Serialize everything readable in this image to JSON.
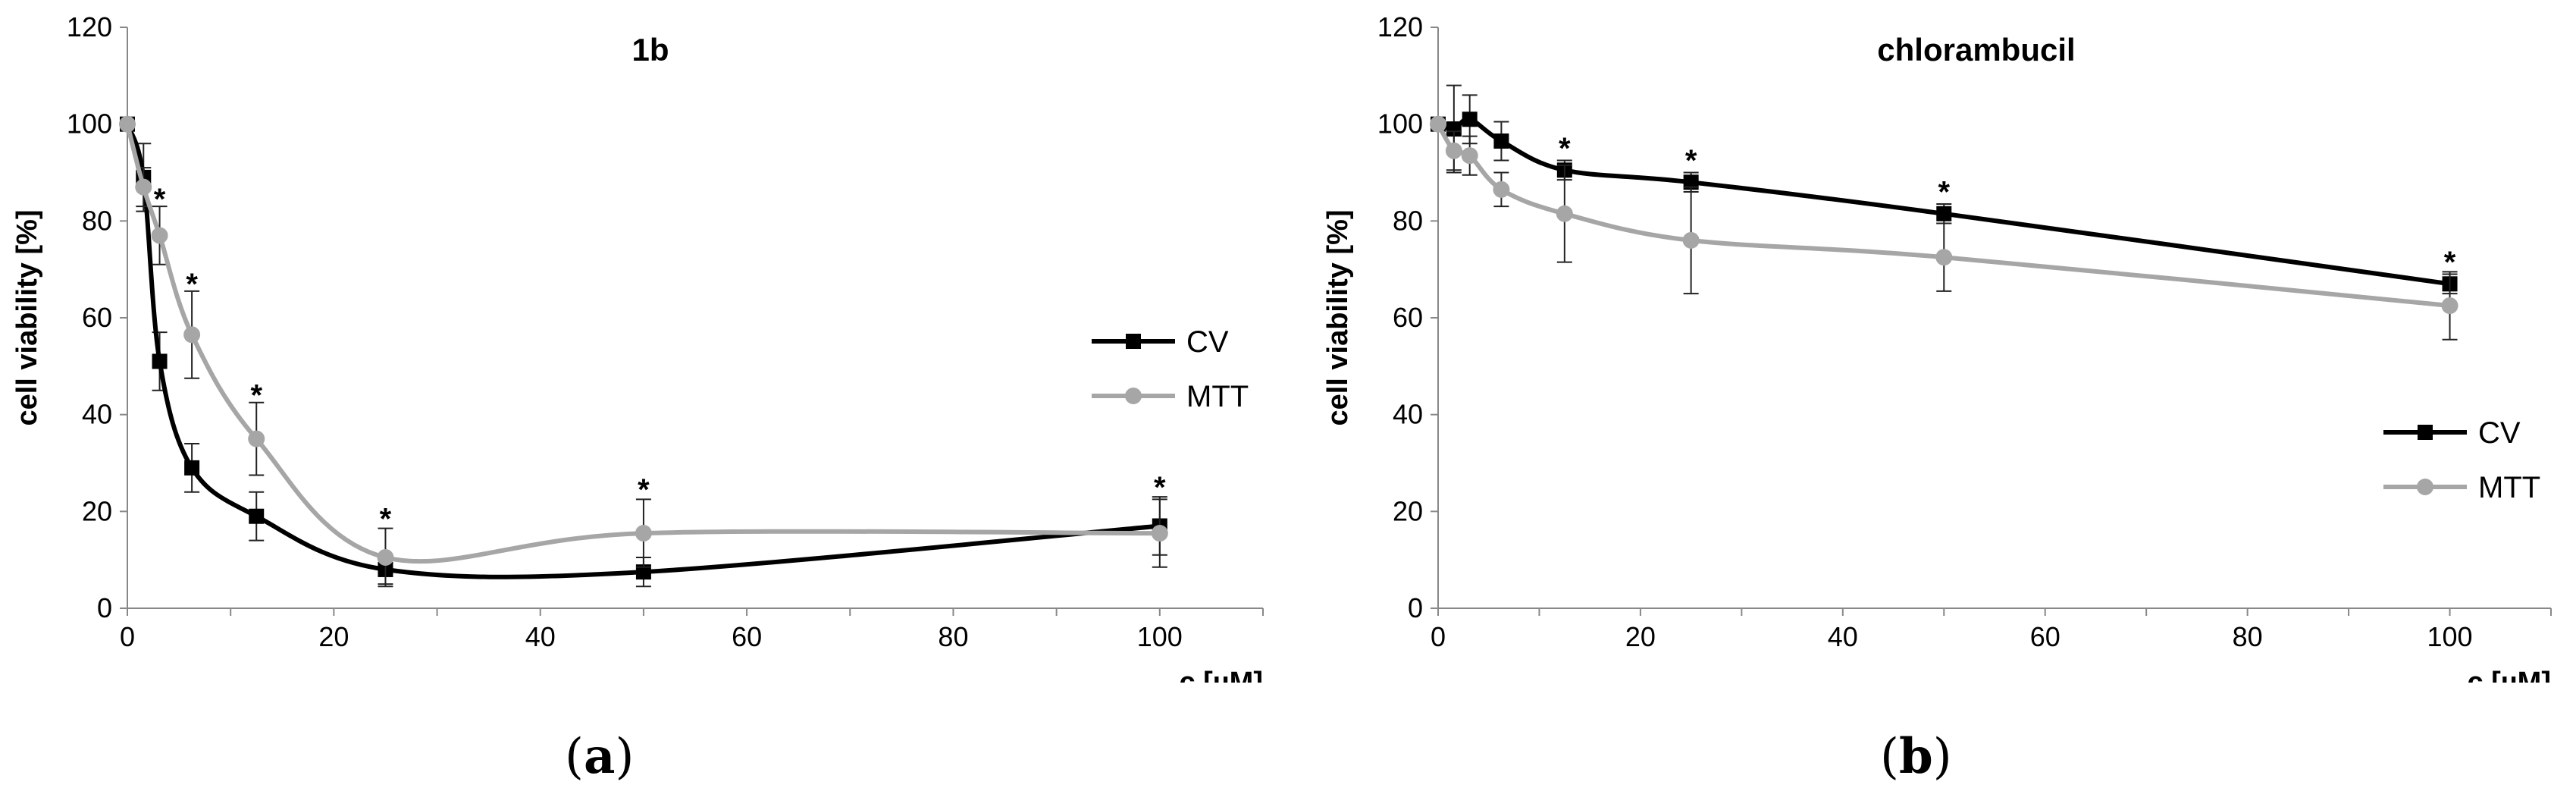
{
  "chart_data": [
    {
      "type": "line",
      "panel_label": "a",
      "title": "1b",
      "xlabel": "c [µM]",
      "ylabel": "cell viability [%]",
      "xlim": [
        0,
        110
      ],
      "ylim": [
        0,
        120
      ],
      "xticks": [
        0,
        20,
        40,
        60,
        80,
        100
      ],
      "yticks": [
        0,
        20,
        40,
        60,
        80,
        100,
        120
      ],
      "legend_position": "middle-right",
      "grid": false,
      "x": [
        0,
        1.5625,
        3.125,
        6.25,
        12.5,
        25,
        50,
        100
      ],
      "series": [
        {
          "name": "CV",
          "color": "#000000",
          "marker": "square",
          "values": [
            100,
            89,
            51,
            29,
            19,
            8,
            7.5,
            17
          ],
          "errors": [
            0,
            7,
            6,
            5,
            5,
            3,
            3,
            6
          ]
        },
        {
          "name": "MTT",
          "color": "#a6a6a6",
          "marker": "circle",
          "values": [
            100,
            87,
            77,
            56.5,
            35,
            10.5,
            15.5,
            15.5
          ],
          "errors": [
            0,
            4,
            6,
            9,
            7.5,
            6,
            7,
            7
          ]
        }
      ],
      "significance": [
        {
          "x": 3.125,
          "y": 83,
          "label": "*"
        },
        {
          "x": 6.25,
          "y": 65.5,
          "label": "*"
        },
        {
          "x": 12.5,
          "y": 42.5,
          "label": "*"
        },
        {
          "x": 25,
          "y": 17,
          "label": "*"
        },
        {
          "x": 50,
          "y": 23,
          "label": "*"
        },
        {
          "x": 100,
          "y": 23.5,
          "label": "*"
        }
      ]
    },
    {
      "type": "line",
      "panel_label": "b",
      "title": "chlorambucil",
      "xlabel": "c [µM]",
      "ylabel": "cell viability [%]",
      "xlim": [
        0,
        110
      ],
      "ylim": [
        0,
        120
      ],
      "xticks": [
        0,
        20,
        40,
        60,
        80,
        100
      ],
      "yticks": [
        0,
        20,
        40,
        60,
        80,
        100,
        120
      ],
      "legend_position": "bottom-right",
      "grid": false,
      "x": [
        0,
        1.5625,
        3.125,
        6.25,
        12.5,
        25,
        50,
        100
      ],
      "series": [
        {
          "name": "CV",
          "color": "#000000",
          "marker": "square",
          "values": [
            100,
            99,
            101,
            96.5,
            90.5,
            88,
            81.5,
            67
          ],
          "errors": [
            0,
            9,
            5,
            4,
            2,
            2,
            2,
            2
          ]
        },
        {
          "name": "MTT",
          "color": "#a6a6a6",
          "marker": "circle",
          "values": [
            100,
            94.5,
            93.5,
            86.5,
            81.5,
            76,
            72.5,
            62.5
          ],
          "errors": [
            0,
            4,
            4,
            3.5,
            10,
            11,
            7,
            7
          ]
        }
      ],
      "significance": [
        {
          "x": 12.5,
          "y": 93.5,
          "label": "*"
        },
        {
          "x": 25,
          "y": 91,
          "label": "*"
        },
        {
          "x": 50,
          "y": 84.5,
          "label": "*"
        },
        {
          "x": 100,
          "y": 70,
          "label": "*"
        }
      ]
    }
  ]
}
